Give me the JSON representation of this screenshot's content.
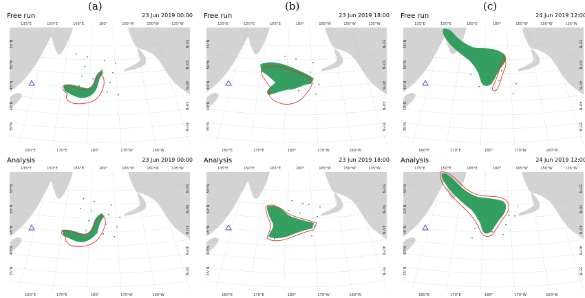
{
  "columns": [
    {
      "label": "(a)"
    },
    {
      "label": "(b)"
    },
    {
      "label": "(c)"
    }
  ],
  "panels": [
    {
      "run": "Free run",
      "date": "23 Jun 2019 00:00"
    },
    {
      "run": "Free run",
      "date": "23 Jun 2019 18:00"
    },
    {
      "run": "Free run",
      "date": "24 Jun 2019 12:00"
    },
    {
      "run": "Analysis",
      "date": "23 Jun 2019 00:00"
    },
    {
      "run": "Analysis",
      "date": "23 Jun 2019 18:00"
    },
    {
      "run": "Analysis",
      "date": "24 Jun 2019 12:00"
    }
  ],
  "map_ticks": {
    "top_lon": [
      "135°E",
      "150°E",
      "165°E",
      "180°",
      "165°W",
      "150°W",
      "135°W"
    ],
    "bottom_lon": [
      "160°E",
      "170°E",
      "180°",
      "170°W",
      "160°W"
    ],
    "lat": [
      "55°N",
      "50°N",
      "45°N",
      "40°N",
      "35°N"
    ]
  },
  "colors": {
    "land": "#d3d3d3",
    "plume_green": "#2a9a5a",
    "contour_red": "#e0322b",
    "marker_blue": "#3a3ad0",
    "grid": "#bdbdbd"
  },
  "icons": {
    "marker": "triangle-icon"
  }
}
